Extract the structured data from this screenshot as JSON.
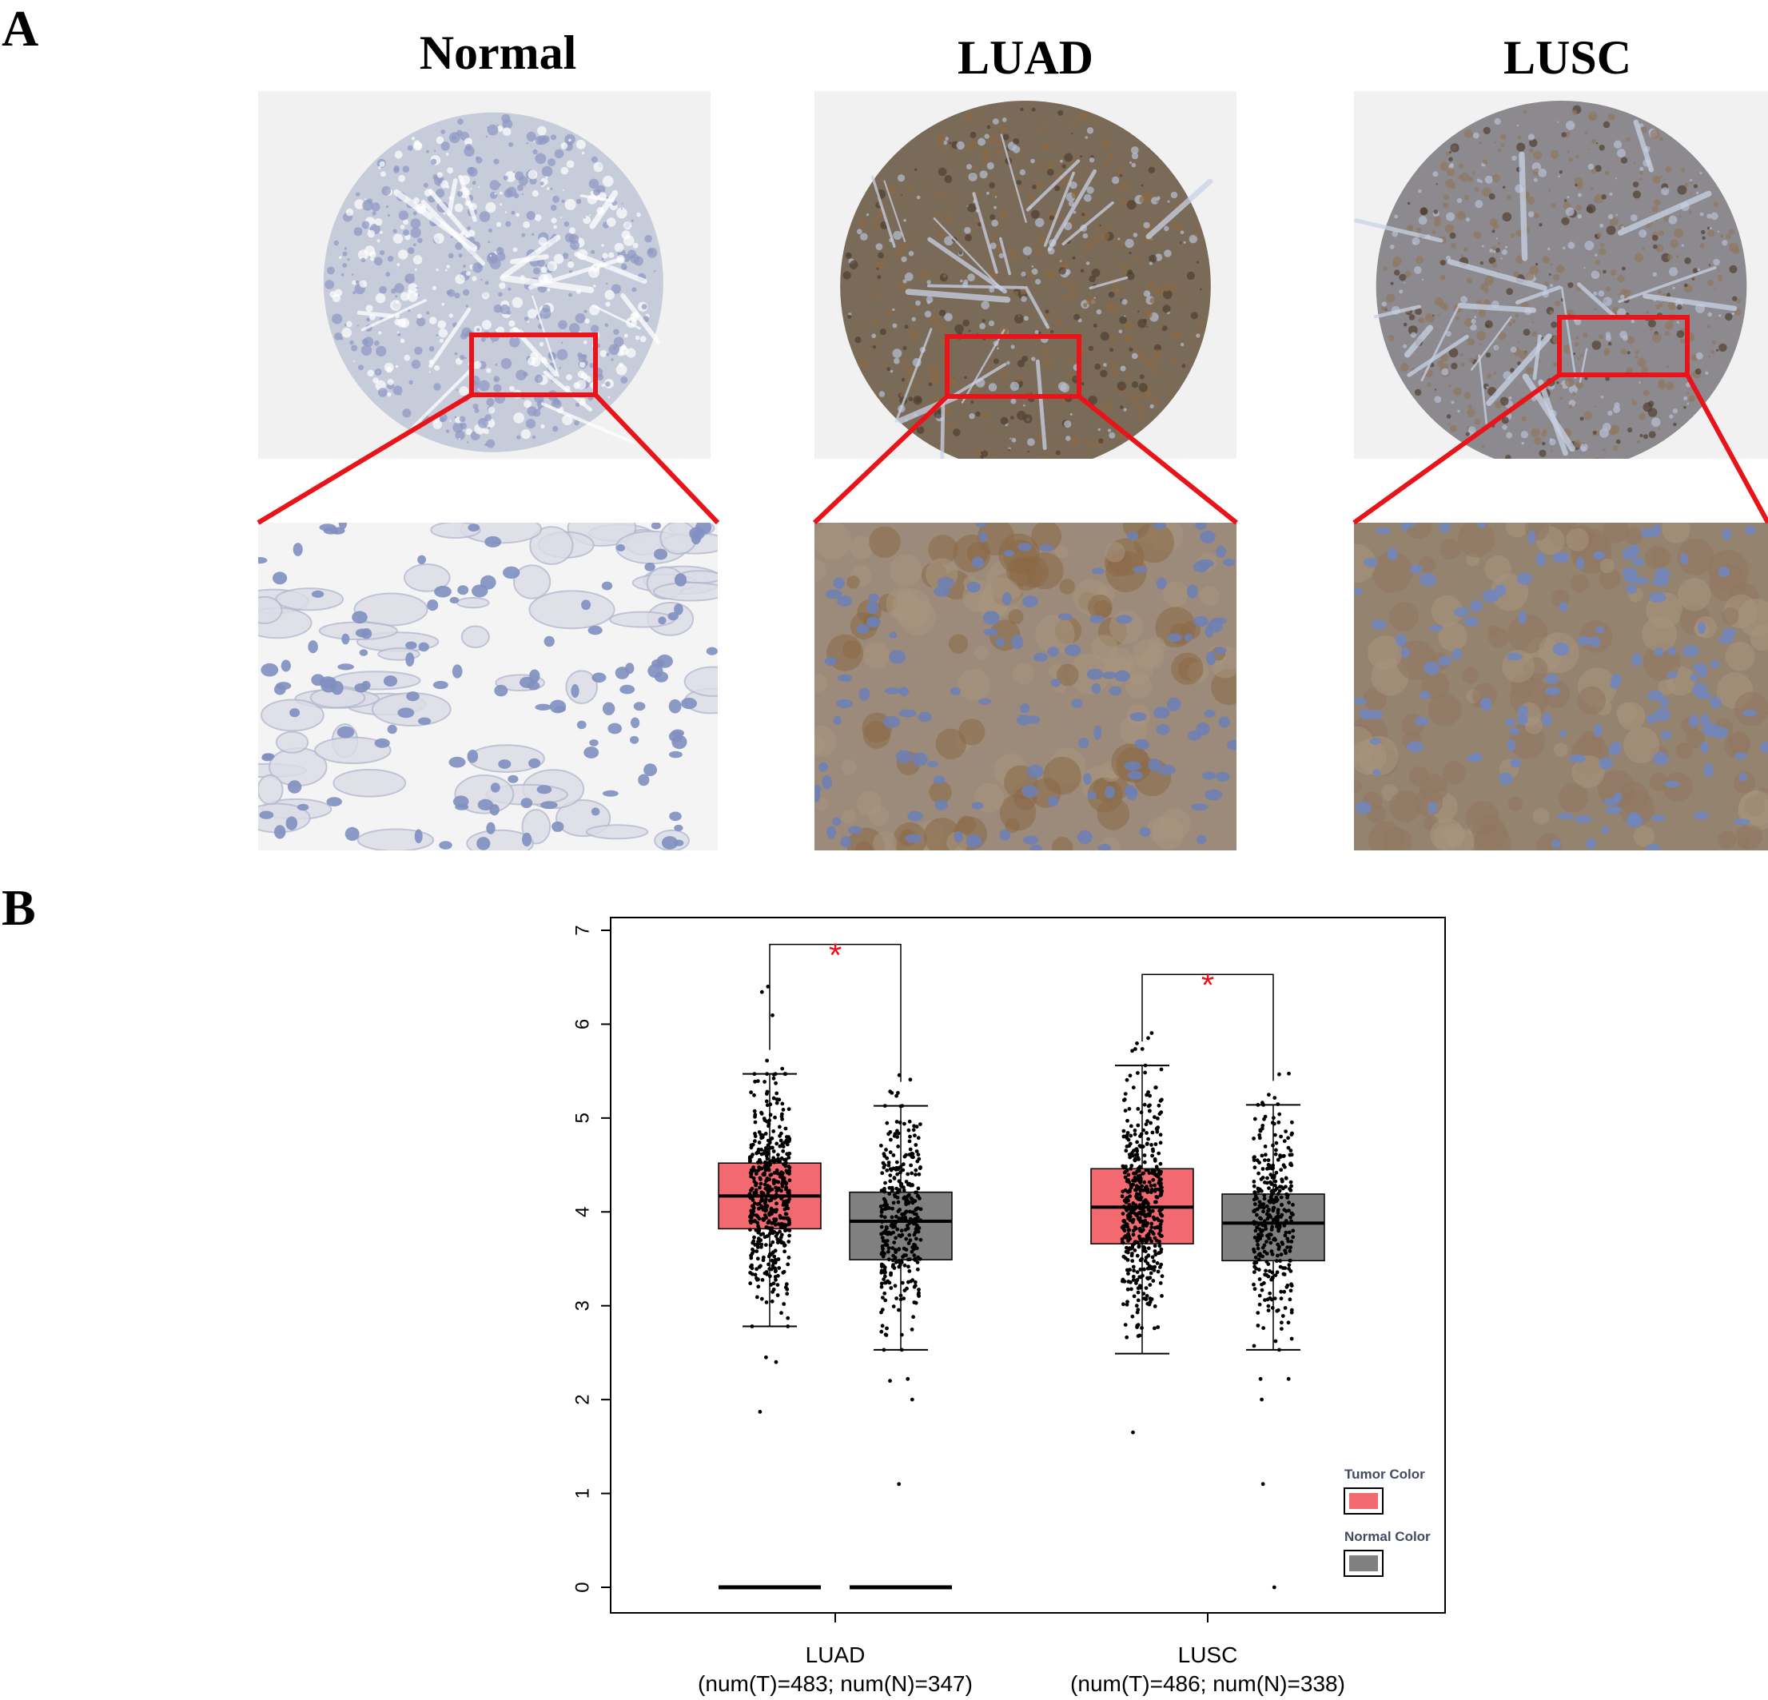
{
  "panel_a": {
    "label": "A",
    "columns": [
      {
        "title": "Normal",
        "overview_bg": "#f1f1f1",
        "tissue": "#c7ccdb",
        "stain": "#b9bdd0",
        "detail_bg": "#f4f4f4",
        "detail_cell": "#7f8fc0"
      },
      {
        "title": "LUAD",
        "overview_bg": "#f1f1f1",
        "tissue": "#7a6a58",
        "stain": "#8a6a46",
        "detail_bg": "#9c8a7a",
        "detail_cell": "#6e7fb3"
      },
      {
        "title": "LUSC",
        "overview_bg": "#f1f1f1",
        "tissue": "#8c8a8e",
        "stain": "#8f7760",
        "detail_bg": "#94846f",
        "detail_cell": "#7286bb"
      }
    ],
    "highlight_color": "#e8141a"
  },
  "panel_b": {
    "label": "B",
    "legend": {
      "tumor_label": "Tumor Color",
      "normal_label": "Normal Color"
    },
    "significance": "*",
    "colors": {
      "tumor": "#f26a6f",
      "normal": "#808080",
      "star": "#e8141a"
    }
  },
  "chart_data": {
    "type": "box",
    "ylim": [
      0,
      7
    ],
    "yticks": [
      "0",
      "1",
      "2",
      "3",
      "4",
      "5",
      "6",
      "7"
    ],
    "groups": [
      {
        "name": "LUAD",
        "sub": "(num(T)=483; num(N)=347)",
        "tumor": {
          "n": 483,
          "min": 2.78,
          "q1": 3.82,
          "median": 4.17,
          "q3": 4.52,
          "max": 5.47,
          "outliers_low": [
            2.4,
            2.45,
            1.87
          ],
          "zeros": true
        },
        "normal": {
          "n": 347,
          "min": 2.53,
          "q1": 3.49,
          "median": 3.9,
          "q3": 4.21,
          "max": 5.13,
          "outliers_low": [
            2.2,
            2.22,
            2.0,
            1.1
          ],
          "zeros": true
        }
      },
      {
        "name": "LUSC",
        "sub": "(num(T)=486; num(N)=338)",
        "tumor": {
          "n": 486,
          "min": 2.49,
          "q1": 3.66,
          "median": 4.05,
          "q3": 4.46,
          "max": 5.56,
          "outliers_low": [
            1.65
          ],
          "zeros": false
        },
        "normal": {
          "n": 338,
          "min": 2.53,
          "q1": 3.48,
          "median": 3.88,
          "q3": 4.19,
          "max": 5.14,
          "outliers_low": [
            2.22,
            2.22,
            2.0,
            1.1,
            0.0
          ],
          "zeros": false
        }
      }
    ],
    "comparisons": [
      {
        "group": "LUAD",
        "label": "*",
        "y": 6.85
      },
      {
        "group": "LUSC",
        "label": "*",
        "y": 6.53
      }
    ]
  }
}
